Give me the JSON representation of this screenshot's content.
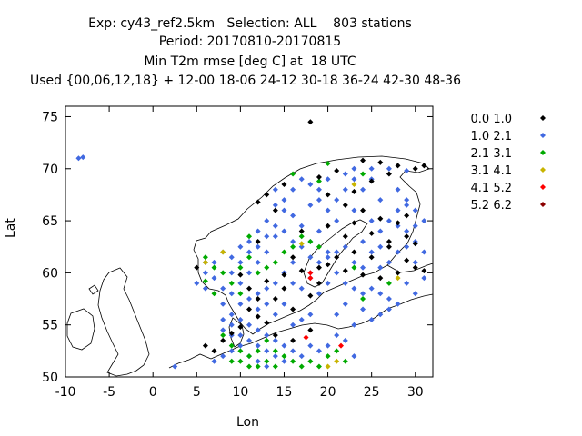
{
  "chart_data": {
    "type": "scatter",
    "title_lines": [
      "Exp: cy43_ref2.5km   Selection: ALL    803 stations",
      "Period: 20170810-20170815",
      "Min T2m rmse [deg C] at  18 UTC",
      "Used {00,06,12,18} + 12-00 18-06 24-12 30-18 36-24 42-30 48-36"
    ],
    "xlabel": "Lon",
    "ylabel": "Lat",
    "xlim": [
      -10,
      32
    ],
    "ylim": [
      50,
      76
    ],
    "xticks": [
      -10,
      -5,
      0,
      5,
      10,
      15,
      20,
      25,
      30
    ],
    "yticks": [
      50,
      55,
      60,
      65,
      70,
      75
    ],
    "legend_position": "right",
    "series": [
      {
        "name": "0.0 1.0",
        "color": "#000000",
        "points": [
          [
            18,
            74.5
          ],
          [
            15,
            68.5
          ],
          [
            19,
            69.2
          ],
          [
            21,
            69.8
          ],
          [
            24,
            70.8
          ],
          [
            26,
            70.6
          ],
          [
            28,
            70.3
          ],
          [
            30,
            70.0
          ],
          [
            31,
            70.3
          ],
          [
            27,
            69.5
          ],
          [
            25,
            68.8
          ],
          [
            23,
            67.8
          ],
          [
            20,
            67.5
          ],
          [
            22,
            66.5
          ],
          [
            24,
            66.0
          ],
          [
            26,
            65.2
          ],
          [
            28,
            64.8
          ],
          [
            29,
            63.5
          ],
          [
            30,
            62.8
          ],
          [
            27,
            62.5
          ],
          [
            25,
            61.5
          ],
          [
            23,
            62.0
          ],
          [
            21,
            61.5
          ],
          [
            19,
            60.5
          ],
          [
            17,
            60.2
          ],
          [
            15,
            59.8
          ],
          [
            13,
            59.2
          ],
          [
            11,
            58.5
          ],
          [
            12,
            57.5
          ],
          [
            11,
            56.5
          ],
          [
            12,
            55.8
          ],
          [
            13,
            55.2
          ],
          [
            10,
            54.8
          ],
          [
            9,
            54.2
          ],
          [
            8,
            53.5
          ],
          [
            6,
            53.0
          ],
          [
            7,
            52.5
          ],
          [
            16,
            53.5
          ],
          [
            18,
            54.5
          ],
          [
            14,
            54.0
          ],
          [
            20,
            60.8
          ],
          [
            22,
            60.2
          ],
          [
            24,
            59.8
          ],
          [
            26,
            59.5
          ],
          [
            28,
            60.0
          ],
          [
            29,
            61.2
          ],
          [
            30,
            60.5
          ],
          [
            31,
            60.2
          ],
          [
            20,
            64.5
          ],
          [
            22,
            63.5
          ],
          [
            17,
            64.0
          ],
          [
            14,
            66.0
          ],
          [
            13,
            67.5
          ],
          [
            12,
            66.8
          ],
          [
            5,
            60.5
          ],
          [
            6,
            61.0
          ],
          [
            10,
            59.8
          ],
          [
            14,
            57.5
          ],
          [
            16,
            56.5
          ],
          [
            18,
            57.8
          ],
          [
            19,
            59.0
          ],
          [
            15,
            58.5
          ],
          [
            23,
            64.8
          ],
          [
            25,
            63.8
          ],
          [
            27,
            63.0
          ],
          [
            29,
            65.5
          ],
          [
            16,
            61.5
          ],
          [
            12,
            63.0
          ]
        ]
      },
      {
        "name": "1.0 2.1",
        "color": "#4169e1",
        "points": [
          [
            -8.5,
            71.0
          ],
          [
            -8.0,
            71.1
          ],
          [
            2.5,
            51.0
          ],
          [
            5,
            59
          ],
          [
            6,
            60
          ],
          [
            7,
            61
          ],
          [
            8,
            62
          ],
          [
            9,
            61.5
          ],
          [
            10,
            62.5
          ],
          [
            11,
            63
          ],
          [
            12,
            64
          ],
          [
            13,
            65
          ],
          [
            14,
            66.5
          ],
          [
            15,
            67
          ],
          [
            16,
            68
          ],
          [
            17,
            69
          ],
          [
            18,
            68.5
          ],
          [
            19,
            68
          ],
          [
            20,
            69
          ],
          [
            22,
            69.5
          ],
          [
            23,
            70
          ],
          [
            25,
            70
          ],
          [
            27,
            70
          ],
          [
            29,
            69.8
          ],
          [
            24,
            68
          ],
          [
            26,
            67
          ],
          [
            28,
            66
          ],
          [
            27,
            65
          ],
          [
            26,
            64
          ],
          [
            24,
            63
          ],
          [
            22,
            62.5
          ],
          [
            20,
            62
          ],
          [
            18,
            61.5
          ],
          [
            17,
            62.5
          ],
          [
            16,
            63
          ],
          [
            15,
            64
          ],
          [
            14,
            63.5
          ],
          [
            13,
            62
          ],
          [
            12,
            61
          ],
          [
            11,
            60
          ],
          [
            10,
            59
          ],
          [
            9,
            58
          ],
          [
            8,
            57
          ],
          [
            9,
            56
          ],
          [
            10,
            55.5
          ],
          [
            11,
            55
          ],
          [
            12,
            54.5
          ],
          [
            13,
            54
          ],
          [
            14,
            53.5
          ],
          [
            15,
            53
          ],
          [
            16,
            52.5
          ],
          [
            17,
            52
          ],
          [
            18,
            53
          ],
          [
            19,
            52.5
          ],
          [
            20,
            53
          ],
          [
            21,
            54
          ],
          [
            22,
            53.5
          ],
          [
            23,
            52
          ],
          [
            10,
            53
          ],
          [
            9,
            52.5
          ],
          [
            8,
            52
          ],
          [
            7,
            51.5
          ],
          [
            11,
            52
          ],
          [
            12,
            51.5
          ],
          [
            13,
            51
          ],
          [
            14,
            52
          ],
          [
            15,
            51.5
          ],
          [
            10,
            57
          ],
          [
            12,
            58
          ],
          [
            13,
            58.5
          ],
          [
            14,
            59
          ],
          [
            15,
            60
          ],
          [
            16,
            59
          ],
          [
            17,
            58.5
          ],
          [
            18,
            59.5
          ],
          [
            19,
            58
          ],
          [
            20,
            59
          ],
          [
            21,
            60
          ],
          [
            22,
            59
          ],
          [
            23,
            58.5
          ],
          [
            24,
            58
          ],
          [
            25,
            58.5
          ],
          [
            26,
            58
          ],
          [
            27,
            57.5
          ],
          [
            28,
            57
          ],
          [
            26,
            60.5
          ],
          [
            27,
            61
          ],
          [
            28,
            62
          ],
          [
            29,
            62.5
          ],
          [
            30,
            63
          ],
          [
            29,
            64
          ],
          [
            28,
            64.5
          ],
          [
            25,
            65
          ],
          [
            23,
            66
          ],
          [
            21,
            65
          ],
          [
            19,
            64
          ],
          [
            18,
            63
          ],
          [
            17,
            64.5
          ],
          [
            16,
            65.5
          ],
          [
            15,
            66
          ],
          [
            14,
            68
          ],
          [
            20,
            66
          ],
          [
            21,
            67
          ],
          [
            22,
            68
          ],
          [
            23,
            69
          ],
          [
            25,
            69
          ],
          [
            28,
            68
          ],
          [
            29,
            67
          ],
          [
            30,
            66
          ],
          [
            18,
            66.5
          ],
          [
            19,
            67
          ],
          [
            8,
            58.5
          ],
          [
            7,
            59.5
          ],
          [
            6,
            58.5
          ],
          [
            9,
            60
          ],
          [
            10,
            61
          ],
          [
            11,
            62
          ],
          [
            12,
            62.5
          ],
          [
            13,
            63.5
          ],
          [
            14,
            64.5
          ],
          [
            16,
            61
          ],
          [
            18,
            60
          ],
          [
            19,
            61
          ],
          [
            20,
            61.5
          ],
          [
            21,
            62
          ],
          [
            23,
            61
          ],
          [
            24,
            60.5
          ],
          [
            25,
            62
          ],
          [
            26,
            62.5
          ],
          [
            9,
            54
          ],
          [
            10,
            54
          ],
          [
            11,
            53.5
          ],
          [
            12,
            53
          ],
          [
            13,
            52.5
          ],
          [
            9,
            55
          ],
          [
            8,
            55.5
          ],
          [
            8,
            54.5
          ],
          [
            16,
            55
          ],
          [
            17,
            55.5
          ],
          [
            18,
            56
          ],
          [
            14,
            56
          ],
          [
            15,
            57
          ],
          [
            12,
            56.5
          ],
          [
            11,
            57.5
          ],
          [
            13,
            57
          ],
          [
            22,
            57
          ],
          [
            24,
            56.5
          ],
          [
            23,
            55
          ],
          [
            21,
            56
          ],
          [
            25,
            55.5
          ],
          [
            26,
            56
          ],
          [
            27,
            56.5
          ],
          [
            30,
            58
          ],
          [
            29,
            59
          ],
          [
            31,
            59.5
          ],
          [
            30,
            61
          ],
          [
            31,
            62
          ],
          [
            30,
            64.5
          ],
          [
            31,
            65
          ],
          [
            29,
            66.5
          ]
        ]
      },
      {
        "name": "2.1 3.1",
        "color": "#00aa00",
        "points": [
          [
            6,
            61.5
          ],
          [
            7,
            60.5
          ],
          [
            8,
            60
          ],
          [
            9,
            59
          ],
          [
            10,
            58
          ],
          [
            11,
            61.5
          ],
          [
            12,
            60
          ],
          [
            13,
            60.5
          ],
          [
            15,
            62
          ],
          [
            16,
            62.5
          ],
          [
            17,
            63.5
          ],
          [
            18,
            63
          ],
          [
            19,
            62.5
          ],
          [
            8,
            54
          ],
          [
            9,
            53
          ],
          [
            10,
            52.5
          ],
          [
            11,
            52
          ],
          [
            12,
            52.5
          ],
          [
            13,
            53.5
          ],
          [
            14,
            52.5
          ],
          [
            15,
            52
          ],
          [
            16,
            51.5
          ],
          [
            17,
            51
          ],
          [
            18,
            51.5
          ],
          [
            19,
            51
          ],
          [
            20,
            52
          ],
          [
            21,
            52.5
          ],
          [
            22,
            51.5
          ],
          [
            10,
            51.5
          ],
          [
            11,
            51
          ],
          [
            9,
            51.5
          ],
          [
            12,
            51
          ],
          [
            13,
            51.5
          ],
          [
            14,
            51
          ],
          [
            20,
            70.5
          ],
          [
            24,
            69.5
          ],
          [
            19,
            68.8
          ],
          [
            16,
            69.5
          ],
          [
            14,
            61
          ],
          [
            10,
            60.5
          ],
          [
            7,
            58
          ],
          [
            6,
            59.2
          ],
          [
            11,
            63.5
          ],
          [
            23,
            60.5
          ],
          [
            27,
            59
          ],
          [
            24,
            57.5
          ]
        ]
      },
      {
        "name": "3.1 4.1",
        "color": "#c8b400",
        "points": [
          [
            8,
            62
          ],
          [
            20,
            51
          ],
          [
            21,
            51.5
          ],
          [
            17,
            62.8
          ],
          [
            23,
            68.5
          ],
          [
            28,
            59.5
          ],
          [
            6,
            61
          ]
        ]
      },
      {
        "name": "4.1 5.2",
        "color": "#ff0000",
        "points": [
          [
            18,
            59.5
          ],
          [
            21.5,
            53
          ],
          [
            17.5,
            53.8
          ],
          [
            18,
            60
          ]
        ]
      },
      {
        "name": "5.2 6.2",
        "color": "#8b0000",
        "points": []
      }
    ]
  }
}
